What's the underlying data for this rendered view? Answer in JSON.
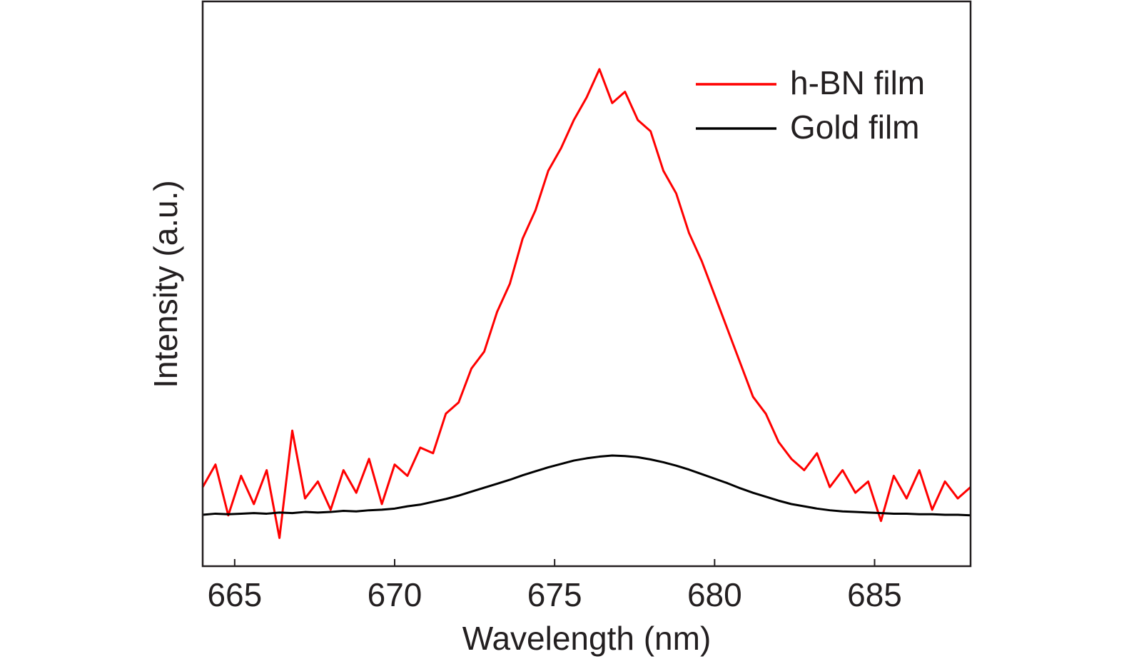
{
  "chart_data": {
    "type": "line",
    "x_label": "Wavelength (nm)",
    "y_label": "Intensity (a.u.)",
    "x": [
      664,
      664.4,
      664.8,
      665.2,
      665.6,
      666,
      666.4,
      666.8,
      667.2,
      667.6,
      668,
      668.4,
      668.8,
      669.2,
      669.6,
      670,
      670.4,
      670.8,
      671.2,
      671.6,
      672,
      672.4,
      672.8,
      673.2,
      673.6,
      674,
      674.4,
      674.8,
      675.2,
      675.6,
      676,
      676.4,
      676.8,
      677.2,
      677.6,
      678,
      678.4,
      678.8,
      679.2,
      679.6,
      680,
      680.4,
      680.8,
      681.2,
      681.6,
      682,
      682.4,
      682.8,
      683.2,
      683.6,
      684,
      684.4,
      684.8,
      685.2,
      685.6,
      686,
      686.4,
      686.8,
      687.2,
      687.6,
      688
    ],
    "series": [
      {
        "name": "h-BN film",
        "color": "#ff0000",
        "values": [
          14,
          18,
          9,
          16,
          11,
          17,
          5,
          24,
          12,
          15,
          10,
          17,
          13,
          19,
          11,
          18,
          16,
          21,
          20,
          27,
          29,
          35,
          38,
          45,
          50,
          58,
          63,
          70,
          74,
          79,
          83,
          88,
          82,
          84,
          79,
          77,
          70,
          66,
          59,
          54,
          48,
          42,
          36,
          30,
          27,
          22,
          19,
          17,
          20,
          14,
          17,
          13,
          15,
          8,
          16,
          12,
          17,
          10,
          15,
          12,
          14
        ]
      },
      {
        "name": "Gold film",
        "color": "#000000",
        "values": [
          9.1,
          9.3,
          9.2,
          9.3,
          9.4,
          9.3,
          9.5,
          9.4,
          9.6,
          9.5,
          9.6,
          9.8,
          9.7,
          9.9,
          10.0,
          10.2,
          10.6,
          10.9,
          11.4,
          11.9,
          12.5,
          13.2,
          13.9,
          14.6,
          15.3,
          16.1,
          16.8,
          17.5,
          18.1,
          18.7,
          19.1,
          19.4,
          19.6,
          19.5,
          19.3,
          18.9,
          18.4,
          17.8,
          17.1,
          16.3,
          15.5,
          14.7,
          13.8,
          13.0,
          12.3,
          11.6,
          11.0,
          10.6,
          10.2,
          9.9,
          9.7,
          9.6,
          9.5,
          9.4,
          9.3,
          9.3,
          9.2,
          9.2,
          9.1,
          9.1,
          9.0
        ]
      }
    ],
    "xlim": [
      664,
      688
    ],
    "xticks": [
      665,
      670,
      675,
      680,
      685
    ],
    "ylim": [
      0,
      100
    ],
    "legend": "upper-right"
  }
}
